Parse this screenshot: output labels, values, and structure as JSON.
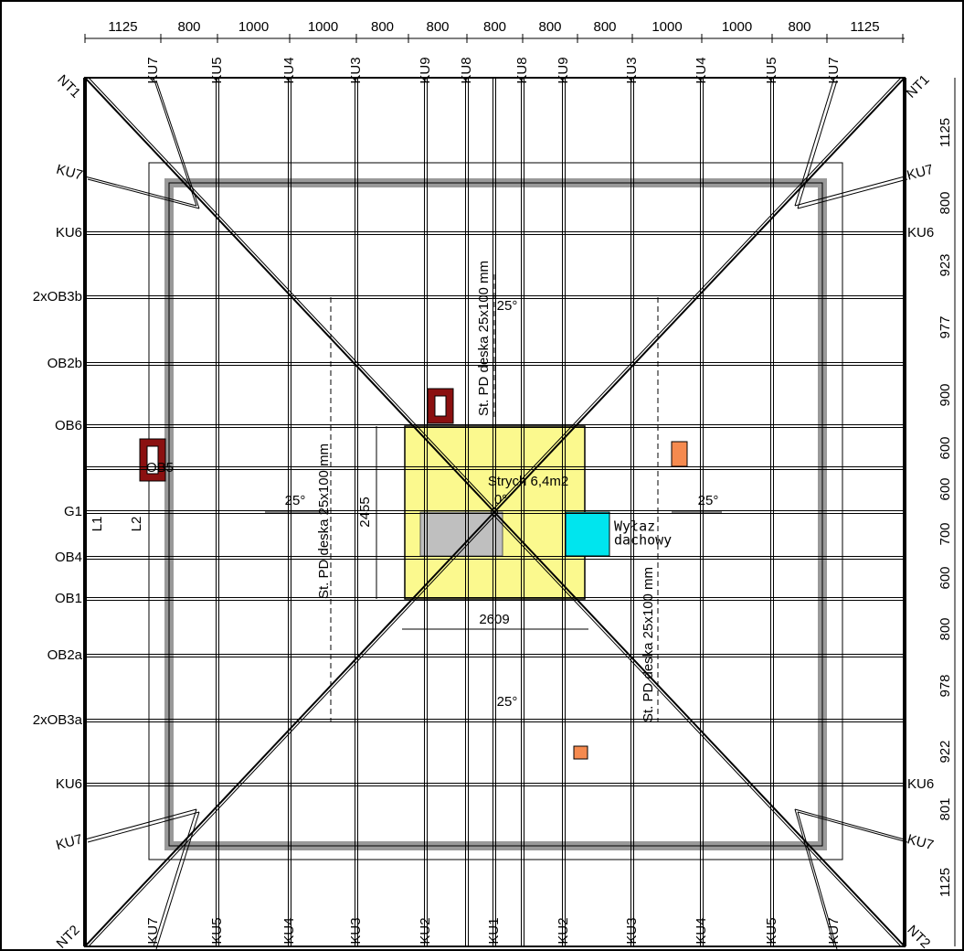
{
  "top_dimensions": [
    "1125",
    "800",
    "1000",
    "1000",
    "800",
    "800",
    "800",
    "800",
    "800",
    "1000",
    "1000",
    "800",
    "1125"
  ],
  "top_labels": [
    "NT1",
    "KU7",
    "KU5",
    "KU4",
    "KU3",
    "KU9",
    "KU8",
    "KU8",
    "KU9",
    "KU3",
    "KU4",
    "KU5",
    "KU7",
    "NT1"
  ],
  "bottom_labels": [
    "NT2",
    "KU7",
    "KU5",
    "KU4",
    "KU3",
    "KU2",
    "KU1",
    "KU2",
    "KU3",
    "KU4",
    "KU5",
    "KU7",
    "NT2"
  ],
  "left_labels": [
    "KU7",
    "KU6",
    "2xOB3b",
    "OB2b",
    "OB6",
    "G1",
    "OB4",
    "OB1",
    "OB2a",
    "2xOB3a",
    "KU6",
    "KU7"
  ],
  "right_labels": [
    "KU7",
    "KU6",
    "KU6",
    "KU7"
  ],
  "right_dimensions": [
    "1125",
    "800",
    "923",
    "977",
    "900",
    "600",
    "600",
    "700",
    "600",
    "800",
    "978",
    "922",
    "801",
    "1125"
  ],
  "slope_labels": [
    "25°",
    "25°",
    "25°",
    "25°"
  ],
  "board_labels": [
    "St. PD deska 25x100 mm",
    "St. PD deska 25x100 mm",
    "St. PD deska 25x100 mm"
  ],
  "attic_label": "Strych 6,4m2",
  "flat_label": "0°",
  "attic_height": "2455",
  "attic_width": "2609",
  "hatch_label": [
    "Wyłaz",
    "dachowy"
  ],
  "side_labels": [
    "L1",
    "L2",
    "OB5"
  ]
}
